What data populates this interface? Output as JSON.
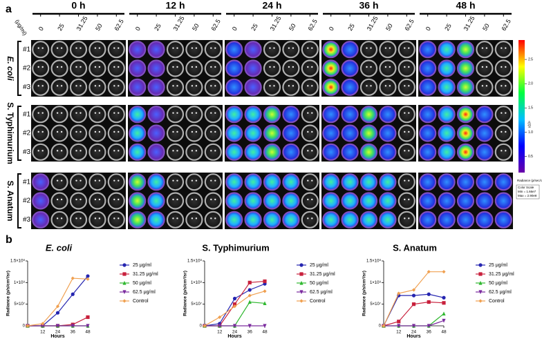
{
  "panel_labels": [
    "a",
    "b"
  ],
  "panel_a": {
    "times": [
      "0 h",
      "12 h",
      "24 h",
      "36 h",
      "48 h"
    ],
    "unit": "(μg/ml)",
    "concentrations": [
      "0",
      "25",
      "31.25",
      "50",
      "62.5"
    ],
    "groups": [
      "E. coli",
      "S. Typhimurium",
      "S. Anatum"
    ],
    "replicates": [
      "#1",
      "#2",
      "#3"
    ],
    "colorbar": {
      "lim": [
        0.166,
        2.9
      ],
      "ticks": [
        0.5,
        {
          "value": 1,
          "label": "1.0"
        },
        1.5,
        {
          "value": 2,
          "label": "2.0"
        },
        2.5
      ],
      "exponent": "x10⁸",
      "title": "Radiance (p/sec/cm²/sr)",
      "scale": [
        "Color Scale",
        "Min = 1.66e7",
        "Max = 2.90e8"
      ]
    }
  },
  "chart_data": [
    {
      "type": "line",
      "title": "E. coli",
      "xlabel": "Hours",
      "ylabel": "Radiance (p/s/cm²/sr)",
      "x": [
        0,
        12,
        24,
        36,
        48
      ],
      "xlim": [
        0,
        48
      ],
      "xticks": [
        12,
        24,
        36,
        48
      ],
      "ylim": [
        0,
        150000000
      ],
      "yticks": [
        0,
        {
          "value": 50000000,
          "label": "5×10⁷"
        },
        {
          "value": 100000000,
          "label": "1×10⁸"
        },
        {
          "value": 150000000,
          "label": "1.5×10⁸"
        }
      ],
      "series": [
        {
          "name": "25 μg/ml",
          "color": "#2525b0",
          "marker": "circle",
          "values": [
            0,
            0,
            30000000,
            73000000,
            115000000
          ]
        },
        {
          "name": "31.25 μg/ml",
          "color": "#c8203c",
          "marker": "square",
          "values": [
            0,
            0,
            0,
            3000000,
            20000000
          ]
        },
        {
          "name": "50 μg/ml",
          "color": "#30b830",
          "marker": "triangle-up",
          "values": [
            0,
            0,
            0,
            0,
            0
          ]
        },
        {
          "name": "62.5 μg/ml",
          "color": "#7a2a9e",
          "marker": "triangle-down",
          "values": [
            0,
            0,
            0,
            0,
            0
          ]
        },
        {
          "name": "Control",
          "color": "#f0a050",
          "marker": "diamond",
          "values": [
            0,
            5000000,
            45000000,
            110000000,
            108000000
          ]
        }
      ]
    },
    {
      "type": "line",
      "title": "S. Typhimurium",
      "xlabel": "Hours",
      "ylabel": "Radiance (p/s/cm²/sr)",
      "x": [
        0,
        12,
        24,
        36,
        48
      ],
      "xlim": [
        0,
        48
      ],
      "xticks": [
        12,
        24,
        36,
        48
      ],
      "ylim": [
        0,
        150000000
      ],
      "yticks": [
        0,
        {
          "value": 50000000,
          "label": "5×10⁷"
        },
        {
          "value": 100000000,
          "label": "1×10⁸"
        },
        {
          "value": 150000000,
          "label": "1.5×10⁸"
        }
      ],
      "series": [
        {
          "name": "25 μg/ml",
          "color": "#2525b0",
          "marker": "circle",
          "values": [
            0,
            5000000,
            63000000,
            83000000,
            97000000
          ]
        },
        {
          "name": "31.25 μg/ml",
          "color": "#c8203c",
          "marker": "square",
          "values": [
            0,
            0,
            50000000,
            100000000,
            103000000
          ]
        },
        {
          "name": "50 μg/ml",
          "color": "#30b830",
          "marker": "triangle-up",
          "values": [
            0,
            0,
            0,
            55000000,
            52000000
          ]
        },
        {
          "name": "62.5 μg/ml",
          "color": "#7a2a9e",
          "marker": "triangle-down",
          "values": [
            0,
            0,
            0,
            0,
            0
          ]
        },
        {
          "name": "Control",
          "color": "#f0a050",
          "marker": "diamond",
          "values": [
            0,
            20000000,
            45000000,
            70000000,
            80000000
          ]
        }
      ]
    },
    {
      "type": "line",
      "title": "S. Anatum",
      "xlabel": "Hours",
      "ylabel": "Radiance (p/s/cm²/sr)",
      "x": [
        0,
        12,
        24,
        36,
        48
      ],
      "xlim": [
        0,
        48
      ],
      "xticks": [
        12,
        24,
        36,
        48
      ],
      "ylim": [
        0,
        150000000
      ],
      "yticks": [
        0,
        {
          "value": 50000000,
          "label": "5×10⁷"
        },
        {
          "value": 100000000,
          "label": "1×10⁸"
        },
        {
          "value": 150000000,
          "label": "1.5×10⁸"
        }
      ],
      "series": [
        {
          "name": "25 μg/ml",
          "color": "#2525b0",
          "marker": "circle",
          "values": [
            0,
            70000000,
            70000000,
            73000000,
            65000000
          ]
        },
        {
          "name": "31.25 μg/ml",
          "color": "#c8203c",
          "marker": "square",
          "values": [
            0,
            10000000,
            50000000,
            55000000,
            53000000
          ]
        },
        {
          "name": "50 μg/ml",
          "color": "#30b830",
          "marker": "triangle-up",
          "values": [
            0,
            0,
            0,
            0,
            28000000
          ]
        },
        {
          "name": "62.5 μg/ml",
          "color": "#7a2a9e",
          "marker": "triangle-down",
          "values": [
            0,
            0,
            0,
            0,
            12000000
          ]
        },
        {
          "name": "Control",
          "color": "#f0a050",
          "marker": "diamond",
          "values": [
            0,
            75000000,
            83000000,
            125000000,
            125000000
          ]
        }
      ]
    }
  ]
}
